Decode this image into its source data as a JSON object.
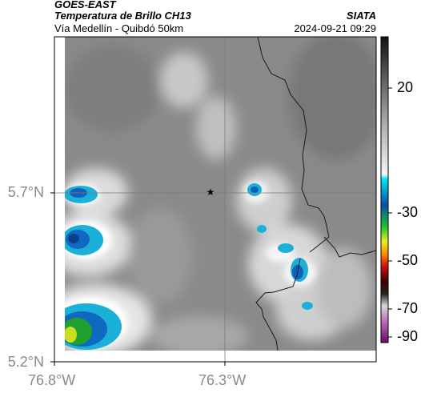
{
  "header": {
    "satellite": "GOES-EAST",
    "product": "Temperatura de Brillo CH13",
    "region": "Vía Medellín - Quibdó 50km",
    "agency": "SIATA",
    "timestamp": "2024-09-21 09:29"
  },
  "axes": {
    "lat_ticks": [
      "5.7°N",
      "5.2°N"
    ],
    "lon_ticks": [
      "76.8°W",
      "76.3°W"
    ]
  },
  "colorbar": {
    "labels": [
      "20",
      "-30",
      "-50",
      "-70",
      "-90"
    ]
  },
  "map": {
    "marker_icon": "star-icon"
  }
}
